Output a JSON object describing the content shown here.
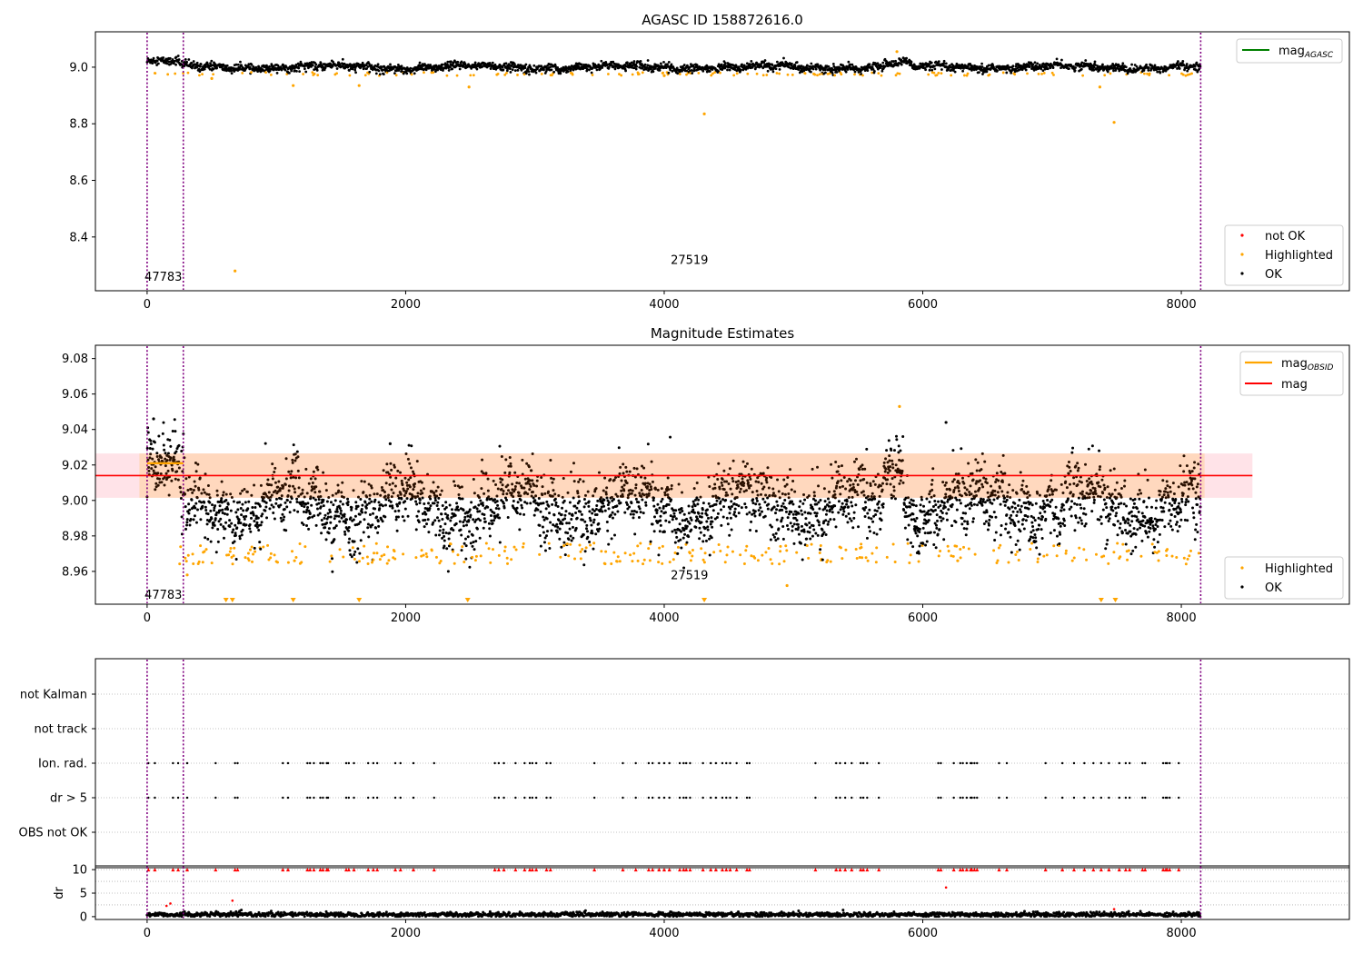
{
  "colors": {
    "ok": "#000000",
    "highlighted": "#ffa500",
    "not_ok": "#ff0000",
    "mag_agasc": "#008000",
    "mag_obsid": "#ffa500",
    "mag": "#ff0000",
    "obsid_boundary": "#800080",
    "band_fill": "#ffc0cb"
  },
  "chart_data": [
    {
      "type": "scatter",
      "title": "AGASC ID 158872616.0",
      "xlim": [
        -400,
        9300
      ],
      "ylim": [
        8.21,
        9.125
      ],
      "xticks": [
        0,
        2000,
        4000,
        6000,
        8000
      ],
      "yticks": [
        8.4,
        8.6,
        8.8,
        9.0
      ],
      "ytick_labels": [
        "8.4",
        "8.6",
        "8.8",
        "9.0"
      ],
      "obsid_boundaries": [
        0,
        280,
        8150
      ],
      "obsid_labels": [
        {
          "text": "47783",
          "x": -20,
          "y": 8.245
        },
        {
          "text": "27519",
          "x": 4050,
          "y": 8.305
        }
      ],
      "series": [
        {
          "name": "OK",
          "ok_band": {
            "x_range": [
              0,
              8150
            ],
            "center": 9.0,
            "spread": 0.015
          }
        },
        {
          "name": "Highlighted",
          "outliers": [
            [
              680,
              8.28
            ],
            [
              4310,
              8.835
            ],
            [
              7480,
              8.805
            ],
            [
              1130,
              8.935
            ],
            [
              1640,
              8.935
            ],
            [
              2490,
              8.93
            ],
            [
              7370,
              8.93
            ],
            [
              5800,
              9.055
            ],
            [
              4000,
              8.97
            ],
            [
              500,
              8.96
            ]
          ]
        },
        {
          "name": "not OK"
        }
      ],
      "lines": [
        {
          "name": "mag",
          "subscript": "AGASC",
          "value": null
        }
      ]
    },
    {
      "type": "scatter",
      "title": "Magnitude Estimates",
      "xlim": [
        -400,
        9300
      ],
      "ylim": [
        8.9415,
        9.0875
      ],
      "xticks": [
        0,
        2000,
        4000,
        6000,
        8000
      ],
      "yticks": [
        8.96,
        8.98,
        9.0,
        9.02,
        9.04,
        9.06,
        9.08
      ],
      "ytick_labels": [
        "8.96",
        "8.98",
        "9.00",
        "9.02",
        "9.04",
        "9.06",
        "9.08"
      ],
      "obsid_boundaries": [
        0,
        280,
        8150
      ],
      "obsid_labels": [
        {
          "text": "47783",
          "x": -20,
          "y": 8.9445
        },
        {
          "text": "27519",
          "x": 4050,
          "y": 8.9555
        }
      ],
      "mag": 9.014,
      "mag_band": [
        9.0015,
        9.0265
      ],
      "mag_band_xrange": [
        -400,
        8550
      ],
      "mag_obsid_segments": [
        {
          "x": [
            0,
            280
          ],
          "y": 9.021
        }
      ],
      "series": [
        {
          "name": "Highlighted",
          "extra": [
            [
              4950,
              8.952
            ],
            [
              310,
              8.958
            ],
            [
              5820,
              9.053
            ],
            [
              1140,
              8.966
            ],
            [
              6270,
              8.966
            ]
          ]
        },
        {
          "name": "OK",
          "extra": [
            [
              6180,
              9.044
            ],
            [
              1880,
              9.032
            ],
            [
              50,
              9.046
            ]
          ]
        }
      ],
      "lines": [
        {
          "name": "mag",
          "subscript": "OBSID"
        },
        {
          "name": "mag"
        }
      ],
      "clipped_markers_x": [
        610,
        660,
        1130,
        1640,
        2480,
        4310,
        7380,
        7490
      ]
    },
    {
      "type": "scatter",
      "xlim": [
        -400,
        9300
      ],
      "category_ticks": [
        "OBS not OK",
        "dr > 5",
        "Ion. rad.",
        "not track",
        "not Kalman"
      ],
      "xticks": [
        0,
        2000,
        4000,
        6000,
        8000
      ],
      "obsid_boundaries": [
        0,
        280,
        8150
      ],
      "flag_x": [
        10,
        60,
        200,
        240,
        310,
        530,
        680,
        700,
        1050,
        1090,
        1240,
        1260,
        1290,
        1340,
        1360,
        1390,
        1400,
        1540,
        1560,
        1600,
        1710,
        1750,
        1780,
        1920,
        1960,
        2060,
        2220,
        2690,
        2720,
        2760,
        2850,
        2920,
        2960,
        2980,
        3010,
        3090,
        3120,
        3460,
        3680,
        3780,
        3880,
        3910,
        3960,
        4000,
        4040,
        4120,
        4150,
        4170,
        4200,
        4300,
        4360,
        4400,
        4450,
        4480,
        4510,
        4560,
        4640,
        4660,
        5170,
        5330,
        5360,
        5400,
        5450,
        5520,
        5540,
        5570,
        5660,
        6120,
        6140,
        6240,
        6290,
        6310,
        6340,
        6370,
        6380,
        6400,
        6420,
        6590,
        6650,
        6950,
        7080,
        7170,
        7250,
        7320,
        7380,
        7440,
        7520,
        7570,
        7600,
        7700,
        7720,
        7860,
        7880,
        7890,
        7910,
        7980
      ]
    },
    {
      "type": "scatter",
      "ylabel": "dr",
      "xlim": [
        -400,
        9300
      ],
      "ylim": [
        -0.6,
        10.8
      ],
      "yticks": [
        0,
        5,
        10
      ],
      "ytick_labels": [
        "0",
        "5",
        "10"
      ],
      "xticks": [
        0,
        2000,
        4000,
        6000,
        8000
      ],
      "xtick_labels": [
        "0",
        "2000",
        "4000",
        "6000",
        "8000"
      ],
      "obsid_boundaries": [
        0,
        280,
        8150
      ],
      "ok_band": {
        "x_range": [
          0,
          8150
        ],
        "center": 0.45,
        "spread": 0.25
      },
      "not_ok_extra": [
        [
          6180,
          6.2
        ],
        [
          660,
          3.4
        ],
        [
          180,
          2.8
        ],
        [
          150,
          2.3
        ],
        [
          7480,
          1.6
        ]
      ],
      "clip_value": 10
    }
  ]
}
